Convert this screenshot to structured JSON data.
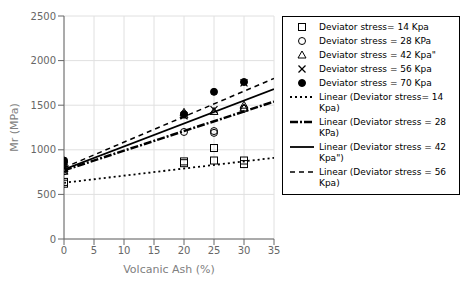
{
  "chart_data": {
    "type": "scatter",
    "title": "",
    "xlabel": "Volcanic Ash (%)",
    "ylabel": "Mr (MPa)",
    "xlim": [
      0,
      35
    ],
    "ylim": [
      0,
      2500
    ],
    "xticks": [
      0,
      5,
      10,
      15,
      20,
      25,
      30,
      35
    ],
    "yticks": [
      0,
      500,
      1000,
      1500,
      2000,
      2500
    ],
    "grid": true,
    "legend": "right",
    "series": [
      {
        "name": "Deviator stress= 14 Kpa",
        "type": "scatter",
        "marker": "square",
        "color": "#000000",
        "x": [
          0,
          0,
          20,
          20,
          25,
          25,
          30,
          30
        ],
        "values": [
          620,
          640,
          850,
          870,
          880,
          1020,
          840,
          880
        ]
      },
      {
        "name": "Deviator stress = 28 KPa",
        "type": "scatter",
        "marker": "circle",
        "color": "#000000",
        "x": [
          0,
          0,
          20,
          25,
          25,
          30
        ],
        "values": [
          760,
          780,
          1200,
          1190,
          1210,
          1460
        ]
      },
      {
        "name": "Deviator stress = 42 Kpa\"",
        "type": "scatter",
        "marker": "triangle",
        "color": "#000000",
        "x": [
          0,
          0,
          20,
          20,
          25,
          30,
          30
        ],
        "values": [
          760,
          790,
          1390,
          1420,
          1430,
          1470,
          1500
        ]
      },
      {
        "name": "Deviator stress = 56 Kpa",
        "type": "scatter",
        "marker": "cross",
        "color": "#000000",
        "x": [
          0,
          20,
          25,
          30
        ],
        "values": [
          800,
          1380,
          1450,
          1750
        ]
      },
      {
        "name": "Deviator stress = 70 Kpa",
        "type": "scatter",
        "marker": "dot",
        "color": "#000000",
        "x": [
          0,
          0,
          20,
          25,
          30
        ],
        "values": [
          860,
          880,
          1400,
          1650,
          1760
        ]
      },
      {
        "name": "Linear (Deviator stress= 14\nKpa)",
        "type": "line",
        "line_style": "dotted",
        "color": "#000000",
        "x": [
          0,
          35
        ],
        "values": [
          630,
          910
        ]
      },
      {
        "name": "Linear (Deviator stress = 28\nKPa)",
        "type": "line",
        "line_style": "dashdot",
        "color": "#000000",
        "x": [
          0,
          35
        ],
        "values": [
          770,
          1540
        ]
      },
      {
        "name": "Linear (Deviator stress = 42\nKpa\")",
        "type": "line",
        "line_style": "solid",
        "color": "#000000",
        "x": [
          0,
          35
        ],
        "values": [
          780,
          1680
        ]
      },
      {
        "name": "Linear (Deviator stress = 56\nKpa)",
        "type": "line",
        "line_style": "dashed",
        "color": "#000000",
        "x": [
          0,
          35
        ],
        "values": [
          800,
          1800
        ]
      }
    ]
  }
}
